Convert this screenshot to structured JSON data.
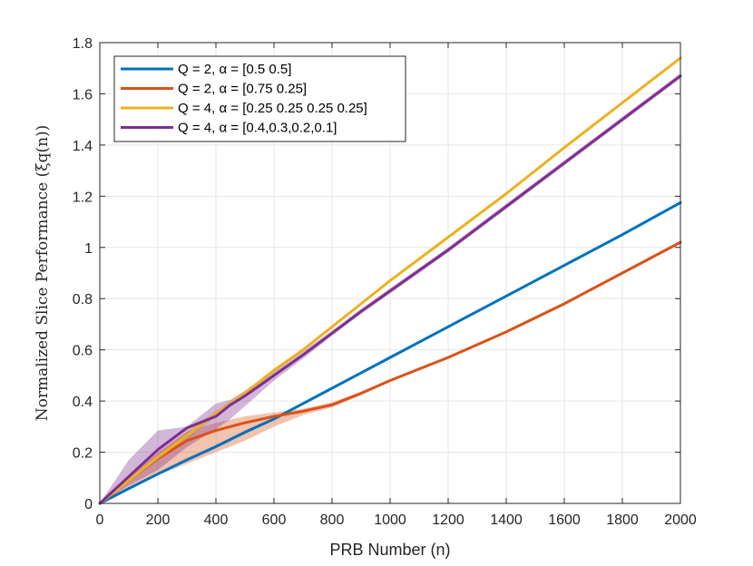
{
  "chart_data": {
    "type": "line",
    "xlabel": "PRB Number (n)",
    "ylabel": "Normalized Slice Performance (ξq(n))",
    "xlim": [
      0,
      2000
    ],
    "ylim": [
      0,
      1.8
    ],
    "xticks": [
      0,
      200,
      400,
      600,
      800,
      1000,
      1200,
      1400,
      1600,
      1800,
      2000
    ],
    "yticks": [
      0,
      0.2,
      0.4,
      0.6,
      0.8,
      1,
      1.2,
      1.4,
      1.6,
      1.8
    ],
    "xtick_labels": [
      "0",
      "200",
      "400",
      "600",
      "800",
      "1000",
      "1200",
      "1400",
      "1600",
      "1800",
      "2000"
    ],
    "ytick_labels": [
      "0",
      "0.2",
      "0.4",
      "0.6",
      "0.8",
      "1",
      "1.2",
      "1.4",
      "1.6",
      "1.8"
    ],
    "grid": true,
    "legend_position": "top-left",
    "series": [
      {
        "name": "Q = 2, α = [0.5 0.5]",
        "color": "#0072BD",
        "x": [
          0,
          100,
          200,
          300,
          400,
          500,
          600,
          700,
          800,
          900,
          1000,
          1200,
          1400,
          1600,
          1800,
          2000
        ],
        "y": [
          0,
          0.058,
          0.115,
          0.17,
          0.222,
          0.278,
          0.33,
          0.39,
          0.45,
          0.51,
          0.57,
          0.69,
          0.81,
          0.93,
          1.05,
          1.175
        ],
        "band_upper": [
          0,
          0.06,
          0.12,
          0.175,
          0.228,
          0.285,
          0.335,
          0.392,
          0.452,
          0.512,
          0.572,
          0.692,
          0.812,
          0.932,
          1.052,
          1.177
        ],
        "band_lower": [
          0,
          0.056,
          0.11,
          0.165,
          0.216,
          0.271,
          0.325,
          0.388,
          0.448,
          0.508,
          0.568,
          0.688,
          0.808,
          0.928,
          1.048,
          1.173
        ]
      },
      {
        "name": "Q = 2, α = [0.75 0.25]",
        "color": "#D95319",
        "x": [
          0,
          100,
          200,
          300,
          400,
          500,
          600,
          700,
          800,
          900,
          1000,
          1200,
          1400,
          1600,
          1800,
          2000
        ],
        "y": [
          0,
          0.09,
          0.175,
          0.245,
          0.285,
          0.315,
          0.34,
          0.36,
          0.385,
          0.43,
          0.48,
          0.57,
          0.67,
          0.78,
          0.9,
          1.02
        ],
        "band_upper": [
          0,
          0.1,
          0.2,
          0.28,
          0.315,
          0.34,
          0.355,
          0.37,
          0.395,
          0.437,
          0.485,
          0.574,
          0.674,
          0.784,
          0.904,
          1.024
        ],
        "band_lower": [
          0,
          0.06,
          0.11,
          0.155,
          0.2,
          0.245,
          0.3,
          0.345,
          0.375,
          0.423,
          0.475,
          0.566,
          0.666,
          0.776,
          0.896,
          1.016
        ]
      },
      {
        "name": "Q = 4, α = [0.25 0.25 0.25 0.25]",
        "color": "#EDB120",
        "x": [
          0,
          100,
          200,
          300,
          400,
          500,
          600,
          700,
          800,
          900,
          1000,
          1200,
          1400,
          1600,
          1800,
          2000
        ],
        "y": [
          0,
          0.09,
          0.18,
          0.265,
          0.35,
          0.43,
          0.52,
          0.6,
          0.69,
          0.78,
          0.87,
          1.04,
          1.21,
          1.39,
          1.565,
          1.74
        ],
        "band_upper": [
          0,
          0.095,
          0.19,
          0.28,
          0.362,
          0.44,
          0.528,
          0.605,
          0.693,
          0.783,
          0.872,
          1.042,
          1.212,
          1.392,
          1.567,
          1.742
        ],
        "band_lower": [
          0,
          0.085,
          0.17,
          0.25,
          0.338,
          0.42,
          0.512,
          0.595,
          0.687,
          0.777,
          0.868,
          1.038,
          1.208,
          1.388,
          1.563,
          1.738
        ]
      },
      {
        "name": "Q = 4, α = [0.4,0.3,0.2,0.1]",
        "color": "#7E2F8E",
        "x": [
          0,
          100,
          200,
          300,
          400,
          450,
          500,
          600,
          700,
          800,
          900,
          1000,
          1200,
          1400,
          1600,
          1800,
          2000
        ],
        "y": [
          0,
          0.105,
          0.21,
          0.295,
          0.34,
          0.385,
          0.42,
          0.5,
          0.58,
          0.665,
          0.75,
          0.83,
          0.99,
          1.16,
          1.33,
          1.5,
          1.67
        ],
        "band_upper": [
          0,
          0.17,
          0.285,
          0.3,
          0.39,
          0.405,
          0.44,
          0.52,
          0.595,
          0.675,
          0.76,
          0.84,
          1.0,
          1.17,
          1.34,
          1.51,
          1.68
        ],
        "band_lower": [
          0,
          0.07,
          0.13,
          0.22,
          0.29,
          0.33,
          0.38,
          0.48,
          0.565,
          0.655,
          0.74,
          0.82,
          0.98,
          1.15,
          1.32,
          1.49,
          1.66
        ]
      }
    ]
  }
}
